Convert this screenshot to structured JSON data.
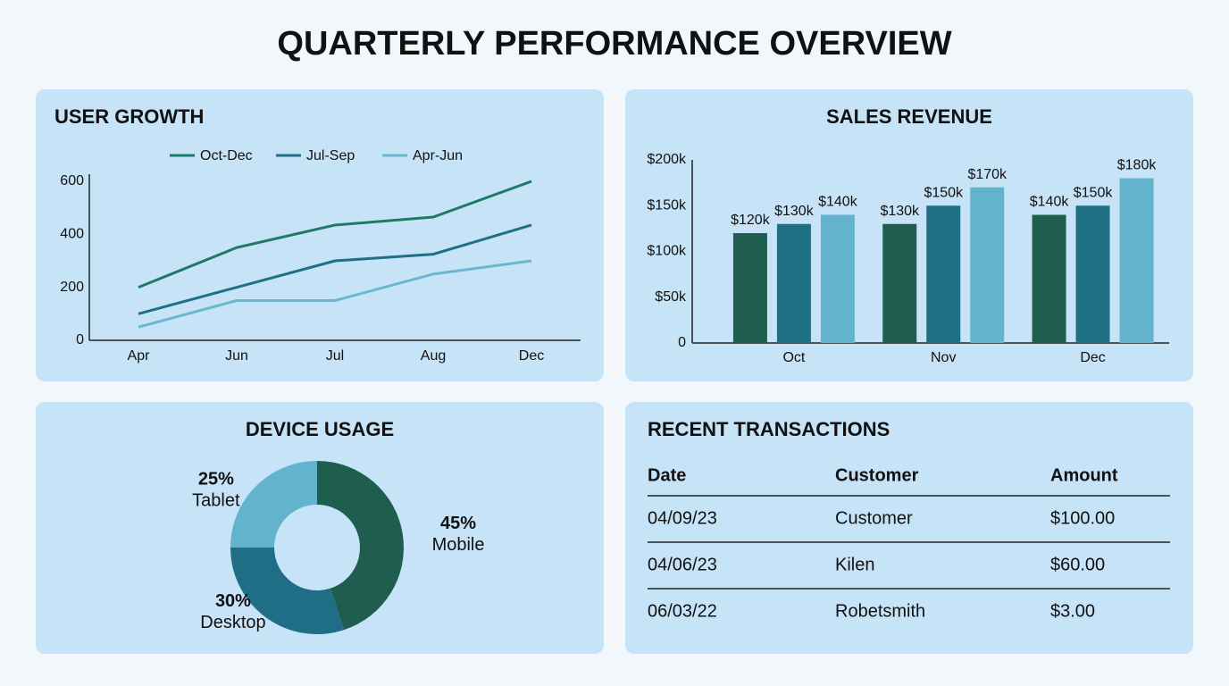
{
  "title": "QUARTERLY PERFORMANCE OVERVIEW",
  "chart_data": [
    {
      "type": "line",
      "title": "USER GROWTH",
      "categories": [
        "Apr",
        "Jun",
        "Jul",
        "Aug",
        "Dec"
      ],
      "series": [
        {
          "name": "Oct-Dec",
          "color": "#1e7a66",
          "values": [
            200,
            350,
            435,
            465,
            600
          ]
        },
        {
          "name": "Jul-Sep",
          "color": "#1f6f85",
          "values": [
            100,
            200,
            300,
            325,
            435
          ]
        },
        {
          "name": "Apr-Jun",
          "color": "#6ab7cf",
          "values": [
            50,
            150,
            150,
            250,
            300
          ]
        }
      ],
      "ylim": [
        0,
        600
      ],
      "yticks": [
        0,
        200,
        400,
        600
      ],
      "legend": "top"
    },
    {
      "type": "bar",
      "title": "SALES REVENUE",
      "categories": [
        "Oct",
        "Nov",
        "Dec"
      ],
      "series": [
        {
          "color": "#1f5e4e",
          "values": [
            120000,
            130000,
            140000
          ],
          "value_labels": [
            "$120k",
            "$130k",
            "$140k"
          ]
        },
        {
          "color": "#1f7085",
          "values": [
            130000,
            150000,
            150000
          ],
          "value_labels": [
            "$130k",
            "$150k",
            "$150k"
          ]
        },
        {
          "color": "#63b3cc",
          "values": [
            140000,
            170000,
            180000
          ],
          "value_labels": [
            "$140k",
            "$170k",
            "$180k"
          ]
        }
      ],
      "ylim": [
        0,
        200000
      ],
      "yticks": [
        0,
        {
          "value": 50000,
          "label": "$50k"
        },
        {
          "value": 100000,
          "label": "$100k"
        },
        {
          "value": 150000,
          "label": "$150k"
        },
        {
          "value": 200000,
          "label": "$200k"
        }
      ]
    },
    {
      "type": "pie",
      "title": "DEVICE USAGE",
      "donut": true,
      "categories": [
        "Mobile",
        "Desktop",
        "Tablet"
      ],
      "values": [
        45,
        30,
        25
      ],
      "value_labels": [
        "45%",
        "30%",
        "25%"
      ],
      "colors": [
        "#1f5e4e",
        "#1f6e85",
        "#63b3cc"
      ]
    }
  ],
  "table": {
    "title": "RECENT TRANSACTIONS",
    "columns": [
      "Date",
      "Customer",
      "Amount"
    ],
    "rows": [
      [
        "04/09/23",
        "Customer",
        "$100.00"
      ],
      [
        "04/06/23",
        "Kilen",
        "$60.00"
      ],
      [
        "06/03/22",
        "Robetsmith",
        "$3.00"
      ]
    ]
  }
}
